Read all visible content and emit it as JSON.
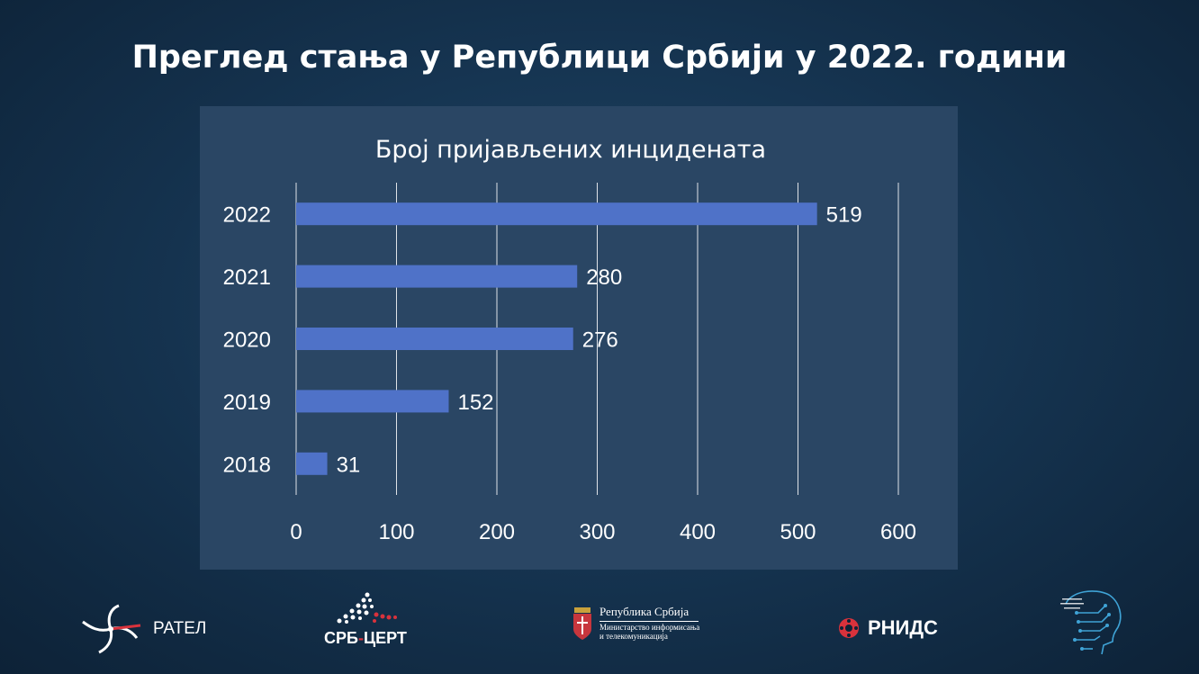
{
  "slide": {
    "title": "Преглед стања у Републици Србији у 2022. години"
  },
  "chart_data": {
    "type": "bar",
    "orientation": "horizontal",
    "title": "Број пријављених инцидената",
    "categories": [
      "2022",
      "2021",
      "2020",
      "2019",
      "2018"
    ],
    "values": [
      519,
      280,
      276,
      152,
      31
    ],
    "xlim": [
      0,
      600
    ],
    "x_ticks": [
      0,
      100,
      200,
      300,
      400,
      500,
      600
    ],
    "xlabel": "",
    "ylabel": "",
    "grid": "vertical",
    "legend": "none",
    "bar_color": "#4f72c8",
    "data_labels": true
  },
  "footer": {
    "ratel": {
      "label": "РАТЕЛ"
    },
    "cert": {
      "label_main": "СРБ",
      "label_dash": "-",
      "label_end": "ЦЕРТ"
    },
    "gov": {
      "line1": "Република Србија",
      "line2": "Министарство информисања",
      "line3": "и телекомуникација"
    },
    "rnids": {
      "label": "РНИДС"
    }
  }
}
